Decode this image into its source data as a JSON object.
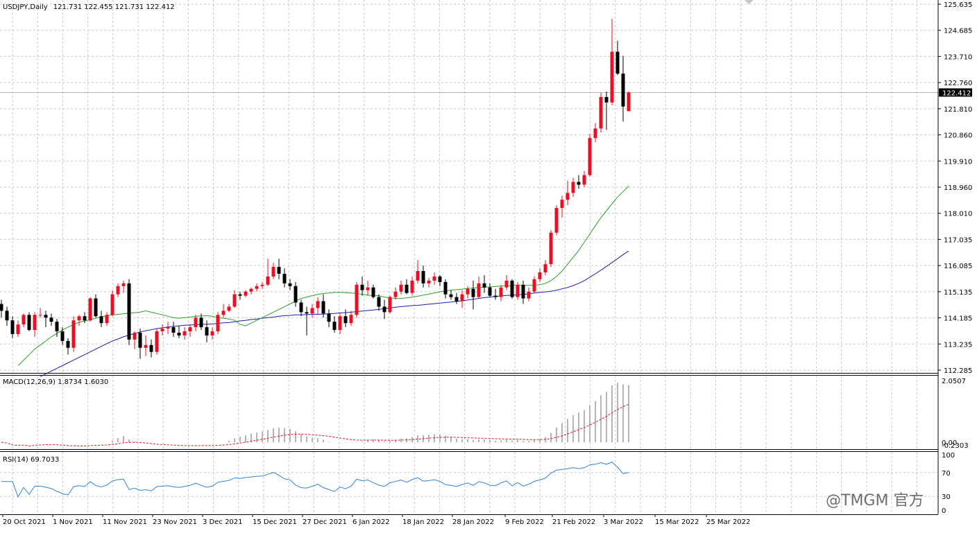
{
  "header": {
    "symbol": "USDJPY,Daily",
    "ohlc": "121.731 122.455 121.731 122.412"
  },
  "price_axis": {
    "labels": [
      "125.635",
      "124.685",
      "123.710",
      "122.760",
      "121.810",
      "120.860",
      "119.910",
      "118.960",
      "118.010",
      "117.035",
      "116.085",
      "115.135",
      "114.185",
      "113.235",
      "112.285"
    ],
    "current_price": "122.412"
  },
  "macd": {
    "label": "MACD(12,26,9) 1.8734 1.6030",
    "axis_labels": [
      "2.0507",
      "0.00",
      "-0.2303"
    ]
  },
  "rsi": {
    "label": "RSI(14) 69.7033",
    "axis_labels": [
      "100",
      "70",
      "30",
      "0"
    ]
  },
  "time_axis": {
    "labels": [
      "20 Oct 2021",
      "1 Nov 2021",
      "11 Nov 2021",
      "23 Nov 2021",
      "3 Dec 2021",
      "15 Dec 2021",
      "27 Dec 2021",
      "6 Jan 2022",
      "18 Jan 2022",
      "28 Jan 2022",
      "9 Feb 2022",
      "21 Feb 2022",
      "3 Mar 2022",
      "15 Mar 2022",
      "25 Mar 2022"
    ]
  },
  "watermark": "@TMGM 官方",
  "colors": {
    "bull": "#e81123",
    "bear": "#000000",
    "ma_fast": "#2aa02a",
    "ma_slow": "#1c1ca8",
    "macd_signal": "#e81123",
    "macd_hist": "#b4b4b4",
    "rsi_line": "#2f84d6",
    "grid": "#c8c8c8"
  },
  "chart_data": {
    "type": "candlestick",
    "symbol": "USDJPY",
    "timeframe": "Daily",
    "price_range": [
      112.285,
      125.635
    ],
    "candles": [
      {
        "o": 114.7,
        "h": 114.85,
        "l": 114.2,
        "c": 114.45
      },
      {
        "o": 114.45,
        "h": 114.6,
        "l": 113.9,
        "c": 114.1
      },
      {
        "o": 114.1,
        "h": 114.25,
        "l": 113.45,
        "c": 113.6
      },
      {
        "o": 113.6,
        "h": 114.1,
        "l": 113.5,
        "c": 113.95
      },
      {
        "o": 113.95,
        "h": 114.35,
        "l": 113.85,
        "c": 114.3
      },
      {
        "o": 114.3,
        "h": 114.4,
        "l": 113.7,
        "c": 113.75
      },
      {
        "o": 113.75,
        "h": 114.4,
        "l": 113.5,
        "c": 114.3
      },
      {
        "o": 114.3,
        "h": 114.55,
        "l": 114.2,
        "c": 114.3
      },
      {
        "o": 114.3,
        "h": 114.45,
        "l": 113.85,
        "c": 114.2
      },
      {
        "o": 114.2,
        "h": 114.35,
        "l": 113.9,
        "c": 114.05
      },
      {
        "o": 114.05,
        "h": 114.15,
        "l": 113.5,
        "c": 113.7
      },
      {
        "o": 113.7,
        "h": 113.85,
        "l": 113.2,
        "c": 113.35
      },
      {
        "o": 113.35,
        "h": 113.45,
        "l": 112.85,
        "c": 113.1
      },
      {
        "o": 113.1,
        "h": 114.25,
        "l": 112.95,
        "c": 114.1
      },
      {
        "o": 114.1,
        "h": 114.3,
        "l": 113.9,
        "c": 114.25
      },
      {
        "o": 114.25,
        "h": 114.4,
        "l": 114.0,
        "c": 114.1
      },
      {
        "o": 114.1,
        "h": 114.95,
        "l": 114.05,
        "c": 114.9
      },
      {
        "o": 114.9,
        "h": 115.05,
        "l": 114.2,
        "c": 114.25
      },
      {
        "o": 114.25,
        "h": 114.45,
        "l": 113.85,
        "c": 114.0
      },
      {
        "o": 114.0,
        "h": 114.4,
        "l": 113.9,
        "c": 114.3
      },
      {
        "o": 114.3,
        "h": 115.2,
        "l": 114.25,
        "c": 115.05
      },
      {
        "o": 115.05,
        "h": 115.45,
        "l": 114.95,
        "c": 115.35
      },
      {
        "o": 115.35,
        "h": 115.55,
        "l": 115.1,
        "c": 115.45
      },
      {
        "o": 115.45,
        "h": 115.6,
        "l": 113.2,
        "c": 113.4
      },
      {
        "o": 113.4,
        "h": 113.7,
        "l": 113.05,
        "c": 113.65
      },
      {
        "o": 113.65,
        "h": 113.8,
        "l": 112.7,
        "c": 113.1
      },
      {
        "o": 113.1,
        "h": 113.55,
        "l": 112.8,
        "c": 113.2
      },
      {
        "o": 113.2,
        "h": 113.4,
        "l": 112.75,
        "c": 112.95
      },
      {
        "o": 112.95,
        "h": 113.8,
        "l": 112.85,
        "c": 113.7
      },
      {
        "o": 113.7,
        "h": 113.95,
        "l": 113.55,
        "c": 113.8
      },
      {
        "o": 113.8,
        "h": 114.05,
        "l": 113.6,
        "c": 113.85
      },
      {
        "o": 113.85,
        "h": 114.05,
        "l": 113.5,
        "c": 113.65
      },
      {
        "o": 113.65,
        "h": 113.9,
        "l": 113.45,
        "c": 113.55
      },
      {
        "o": 113.55,
        "h": 113.85,
        "l": 113.4,
        "c": 113.7
      },
      {
        "o": 113.7,
        "h": 113.95,
        "l": 113.5,
        "c": 113.85
      },
      {
        "o": 113.85,
        "h": 114.3,
        "l": 113.7,
        "c": 114.2
      },
      {
        "o": 114.2,
        "h": 114.35,
        "l": 113.75,
        "c": 113.85
      },
      {
        "o": 113.85,
        "h": 114.1,
        "l": 113.3,
        "c": 113.55
      },
      {
        "o": 113.55,
        "h": 113.85,
        "l": 113.4,
        "c": 113.7
      },
      {
        "o": 113.7,
        "h": 114.4,
        "l": 113.6,
        "c": 114.3
      },
      {
        "o": 114.3,
        "h": 114.7,
        "l": 114.2,
        "c": 114.45
      },
      {
        "o": 114.45,
        "h": 114.7,
        "l": 114.4,
        "c": 114.6
      },
      {
        "o": 114.6,
        "h": 115.2,
        "l": 114.55,
        "c": 115.05
      },
      {
        "o": 115.05,
        "h": 115.15,
        "l": 114.85,
        "c": 115.0
      },
      {
        "o": 115.0,
        "h": 115.2,
        "l": 114.95,
        "c": 115.15
      },
      {
        "o": 115.15,
        "h": 115.3,
        "l": 115.05,
        "c": 115.25
      },
      {
        "o": 115.25,
        "h": 115.45,
        "l": 115.15,
        "c": 115.35
      },
      {
        "o": 115.35,
        "h": 115.5,
        "l": 115.25,
        "c": 115.4
      },
      {
        "o": 115.4,
        "h": 116.35,
        "l": 115.35,
        "c": 115.7
      },
      {
        "o": 115.7,
        "h": 116.2,
        "l": 115.6,
        "c": 116.05
      },
      {
        "o": 116.05,
        "h": 116.35,
        "l": 115.6,
        "c": 115.8
      },
      {
        "o": 115.8,
        "h": 116.0,
        "l": 115.3,
        "c": 115.45
      },
      {
        "o": 115.45,
        "h": 115.6,
        "l": 115.2,
        "c": 115.35
      },
      {
        "o": 115.35,
        "h": 115.5,
        "l": 114.6,
        "c": 114.75
      },
      {
        "o": 114.75,
        "h": 114.85,
        "l": 114.25,
        "c": 114.4
      },
      {
        "o": 114.4,
        "h": 114.6,
        "l": 113.55,
        "c": 114.35
      },
      {
        "o": 114.35,
        "h": 114.7,
        "l": 114.2,
        "c": 114.55
      },
      {
        "o": 114.55,
        "h": 114.95,
        "l": 114.3,
        "c": 114.8
      },
      {
        "o": 114.8,
        "h": 115.05,
        "l": 114.2,
        "c": 114.35
      },
      {
        "o": 114.35,
        "h": 114.5,
        "l": 113.85,
        "c": 114.05
      },
      {
        "o": 114.05,
        "h": 114.25,
        "l": 113.65,
        "c": 113.75
      },
      {
        "o": 113.75,
        "h": 114.35,
        "l": 113.6,
        "c": 114.25
      },
      {
        "o": 114.25,
        "h": 114.5,
        "l": 113.85,
        "c": 114.0
      },
      {
        "o": 114.0,
        "h": 114.45,
        "l": 113.9,
        "c": 114.3
      },
      {
        "o": 114.3,
        "h": 115.5,
        "l": 114.2,
        "c": 115.4
      },
      {
        "o": 115.4,
        "h": 115.7,
        "l": 115.0,
        "c": 115.2
      },
      {
        "o": 115.2,
        "h": 115.55,
        "l": 115.0,
        "c": 115.3
      },
      {
        "o": 115.3,
        "h": 115.4,
        "l": 114.9,
        "c": 114.95
      },
      {
        "o": 114.95,
        "h": 115.05,
        "l": 114.45,
        "c": 114.6
      },
      {
        "o": 114.6,
        "h": 114.85,
        "l": 114.15,
        "c": 114.4
      },
      {
        "o": 114.4,
        "h": 115.0,
        "l": 114.35,
        "c": 114.95
      },
      {
        "o": 114.95,
        "h": 115.3,
        "l": 114.85,
        "c": 115.15
      },
      {
        "o": 115.15,
        "h": 115.55,
        "l": 115.05,
        "c": 115.4
      },
      {
        "o": 115.4,
        "h": 115.6,
        "l": 115.05,
        "c": 115.1
      },
      {
        "o": 115.1,
        "h": 115.7,
        "l": 115.0,
        "c": 115.55
      },
      {
        "o": 115.55,
        "h": 116.3,
        "l": 115.45,
        "c": 115.9
      },
      {
        "o": 115.9,
        "h": 116.1,
        "l": 115.3,
        "c": 115.45
      },
      {
        "o": 115.45,
        "h": 115.65,
        "l": 115.3,
        "c": 115.55
      },
      {
        "o": 115.55,
        "h": 115.85,
        "l": 115.4,
        "c": 115.7
      },
      {
        "o": 115.7,
        "h": 115.75,
        "l": 115.35,
        "c": 115.5
      },
      {
        "o": 115.5,
        "h": 115.6,
        "l": 114.9,
        "c": 115.05
      },
      {
        "o": 115.05,
        "h": 115.2,
        "l": 114.85,
        "c": 114.95
      },
      {
        "o": 114.95,
        "h": 115.1,
        "l": 114.7,
        "c": 114.8
      },
      {
        "o": 114.8,
        "h": 115.2,
        "l": 114.55,
        "c": 115.05
      },
      {
        "o": 115.05,
        "h": 115.35,
        "l": 114.9,
        "c": 115.25
      },
      {
        "o": 115.25,
        "h": 115.55,
        "l": 114.5,
        "c": 114.95
      },
      {
        "o": 114.95,
        "h": 115.7,
        "l": 114.9,
        "c": 115.45
      },
      {
        "o": 115.45,
        "h": 115.75,
        "l": 115.1,
        "c": 115.3
      },
      {
        "o": 115.3,
        "h": 115.45,
        "l": 114.95,
        "c": 115.0
      },
      {
        "o": 115.0,
        "h": 115.25,
        "l": 114.85,
        "c": 114.95
      },
      {
        "o": 114.95,
        "h": 115.4,
        "l": 114.8,
        "c": 115.3
      },
      {
        "o": 115.3,
        "h": 115.75,
        "l": 115.2,
        "c": 115.55
      },
      {
        "o": 115.55,
        "h": 115.6,
        "l": 114.9,
        "c": 114.95
      },
      {
        "o": 114.95,
        "h": 115.5,
        "l": 114.85,
        "c": 115.4
      },
      {
        "o": 115.4,
        "h": 115.55,
        "l": 114.7,
        "c": 114.9
      },
      {
        "o": 114.9,
        "h": 115.3,
        "l": 114.8,
        "c": 115.15
      },
      {
        "o": 115.15,
        "h": 115.7,
        "l": 115.1,
        "c": 115.6
      },
      {
        "o": 115.6,
        "h": 116.0,
        "l": 115.5,
        "c": 115.85
      },
      {
        "o": 115.85,
        "h": 116.3,
        "l": 115.75,
        "c": 116.15
      },
      {
        "o": 116.15,
        "h": 117.4,
        "l": 116.05,
        "c": 117.3
      },
      {
        "o": 117.3,
        "h": 118.3,
        "l": 117.2,
        "c": 118.2
      },
      {
        "o": 118.2,
        "h": 118.65,
        "l": 117.85,
        "c": 118.5
      },
      {
        "o": 118.5,
        "h": 119.2,
        "l": 118.3,
        "c": 118.75
      },
      {
        "o": 118.75,
        "h": 119.3,
        "l": 118.6,
        "c": 119.15
      },
      {
        "o": 119.15,
        "h": 119.4,
        "l": 118.9,
        "c": 119.05
      },
      {
        "o": 119.05,
        "h": 119.55,
        "l": 118.95,
        "c": 119.4
      },
      {
        "o": 119.4,
        "h": 120.9,
        "l": 119.35,
        "c": 120.75
      },
      {
        "o": 120.75,
        "h": 121.3,
        "l": 120.6,
        "c": 121.1
      },
      {
        "o": 121.1,
        "h": 122.4,
        "l": 120.95,
        "c": 122.25
      },
      {
        "o": 122.25,
        "h": 122.45,
        "l": 121.05,
        "c": 122.05
      },
      {
        "o": 122.05,
        "h": 125.1,
        "l": 121.95,
        "c": 123.9
      },
      {
        "o": 123.9,
        "h": 124.3,
        "l": 123.05,
        "c": 123.1
      },
      {
        "o": 123.1,
        "h": 123.75,
        "l": 121.35,
        "c": 121.9
      },
      {
        "o": 121.731,
        "h": 122.455,
        "l": 121.731,
        "c": 122.412
      }
    ],
    "ma_fast": [
      112.45,
      112.65,
      112.85,
      113.05,
      113.2,
      113.35,
      113.5,
      113.62,
      113.75,
      113.85,
      113.95,
      114.03,
      114.08,
      114.12,
      114.18,
      114.23,
      114.27,
      114.3,
      114.32,
      114.34,
      114.36,
      114.38,
      114.4,
      114.45,
      114.4,
      114.35,
      114.3,
      114.25,
      114.2,
      114.18,
      114.2,
      114.22,
      114.25,
      114.26,
      114.27,
      114.25,
      114.2,
      114.18,
      114.15,
      114.1,
      113.95,
      113.9,
      114.0,
      114.1,
      114.2,
      114.3,
      114.4,
      114.5,
      114.6,
      114.7,
      114.8,
      114.9,
      114.95,
      115.0,
      115.05,
      115.08,
      115.1,
      115.12,
      115.12,
      115.11,
      115.1,
      115.08,
      115.05,
      115.02,
      115.0,
      115.0,
      114.95,
      114.92,
      114.9,
      114.9,
      114.92,
      114.95,
      114.98,
      115.02,
      115.06,
      115.1,
      115.14,
      115.18,
      115.2,
      115.22,
      115.24,
      115.26,
      115.28,
      115.3,
      115.31,
      115.32,
      115.34,
      115.35,
      115.36,
      115.37,
      115.38,
      115.38,
      115.38,
      115.38,
      115.4,
      115.45,
      115.55,
      115.7,
      115.9,
      116.15,
      116.4,
      116.65,
      116.95,
      117.25,
      117.55,
      117.85,
      118.1,
      118.35,
      118.6,
      118.8,
      119.0
    ],
    "ma_slow": [
      112.05,
      112.15,
      112.25,
      112.35,
      112.45,
      112.55,
      112.65,
      112.75,
      112.85,
      112.95,
      113.05,
      113.15,
      113.25,
      113.35,
      113.42,
      113.5,
      113.56,
      113.62,
      113.68,
      113.72,
      113.76,
      113.8,
      113.83,
      113.86,
      113.88,
      113.9,
      113.92,
      113.93,
      113.94,
      113.95,
      113.96,
      113.97,
      113.99,
      114.01,
      114.02,
      114.05,
      114.08,
      114.1,
      114.13,
      114.15,
      114.18,
      114.2,
      114.22,
      114.25,
      114.27,
      114.28,
      114.3,
      114.3,
      114.31,
      114.32,
      114.32,
      114.33,
      114.34,
      114.35,
      114.37,
      114.38,
      114.4,
      114.42,
      114.44,
      114.46,
      114.48,
      114.5,
      114.53,
      114.55,
      114.58,
      114.6,
      114.62,
      114.64,
      114.65,
      114.67,
      114.69,
      114.71,
      114.73,
      114.75,
      114.77,
      114.79,
      114.81,
      114.84,
      114.87,
      114.9,
      114.93,
      114.95,
      114.97,
      114.99,
      115.01,
      115.02,
      115.03,
      115.05,
      115.07,
      115.1,
      115.12,
      115.14,
      115.16,
      115.2,
      115.25,
      115.3,
      115.37,
      115.45,
      115.55,
      115.67,
      115.8,
      115.93,
      116.07,
      116.21,
      116.35,
      116.5,
      116.63
    ]
  }
}
